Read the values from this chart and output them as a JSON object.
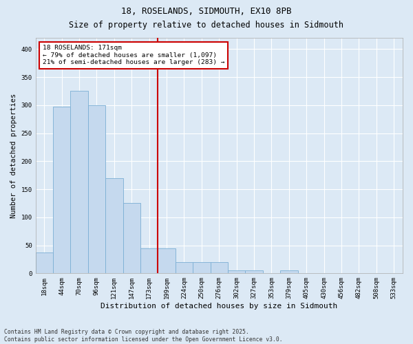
{
  "title": "18, ROSELANDS, SIDMOUTH, EX10 8PB",
  "subtitle": "Size of property relative to detached houses in Sidmouth",
  "xlabel": "Distribution of detached houses by size in Sidmouth",
  "ylabel": "Number of detached properties",
  "bin_labels": [
    "18sqm",
    "44sqm",
    "70sqm",
    "96sqm",
    "121sqm",
    "147sqm",
    "173sqm",
    "199sqm",
    "224sqm",
    "250sqm",
    "276sqm",
    "302sqm",
    "327sqm",
    "353sqm",
    "379sqm",
    "405sqm",
    "430sqm",
    "456sqm",
    "482sqm",
    "508sqm",
    "533sqm"
  ],
  "bar_heights": [
    37,
    297,
    325,
    300,
    170,
    125,
    45,
    45,
    20,
    20,
    20,
    5,
    5,
    0,
    5,
    0,
    0,
    0,
    0,
    0,
    0
  ],
  "bar_color": "#c5d9ee",
  "bar_edge_color": "#7aaed4",
  "vline_color": "#cc0000",
  "annotation_text": "18 ROSELANDS: 171sqm\n← 79% of detached houses are smaller (1,097)\n21% of semi-detached houses are larger (283) →",
  "annotation_box_color": "#ffffff",
  "annotation_box_edge": "#cc0000",
  "ylim": [
    0,
    420
  ],
  "yticks": [
    0,
    50,
    100,
    150,
    200,
    250,
    300,
    350,
    400
  ],
  "background_color": "#dce9f5",
  "plot_bg_color": "#dce9f5",
  "footer": "Contains HM Land Registry data © Crown copyright and database right 2025.\nContains public sector information licensed under the Open Government Licence v3.0.",
  "title_fontsize": 9,
  "subtitle_fontsize": 8.5,
  "ylabel_fontsize": 7.5,
  "xlabel_fontsize": 8,
  "tick_fontsize": 6.5,
  "annot_fontsize": 6.8,
  "footer_fontsize": 5.8
}
